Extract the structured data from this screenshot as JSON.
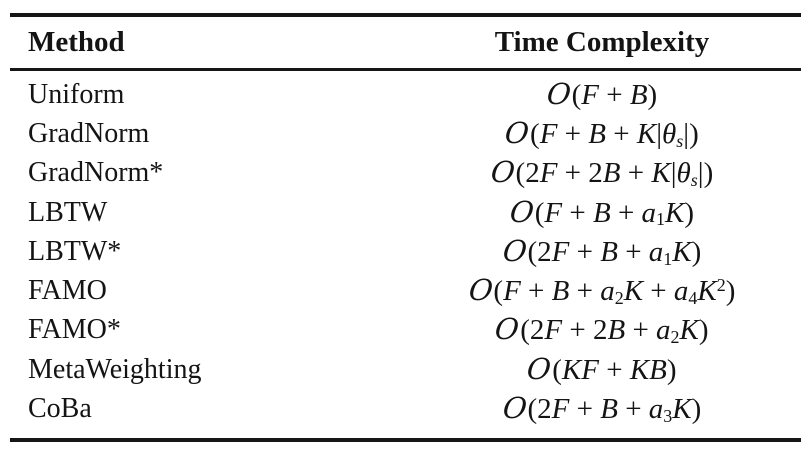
{
  "table": {
    "headers": {
      "method": "Method",
      "complexity": "Time Complexity"
    },
    "rule_color": "#161616",
    "rows": [
      {
        "method": "Uniform",
        "complexity_text": "O(F + B)",
        "formula": [
          {
            "c": "O",
            "k": "cal"
          },
          {
            "c": "(",
            "k": "up"
          },
          {
            "c": "F",
            "k": "it"
          },
          {
            "c": " + ",
            "k": "up"
          },
          {
            "c": "B",
            "k": "it"
          },
          {
            "c": ")",
            "k": "up"
          }
        ]
      },
      {
        "method": "GradNorm",
        "complexity_text": "O(F + B + K|θ_s|)",
        "formula": [
          {
            "c": "O",
            "k": "cal"
          },
          {
            "c": "(",
            "k": "up"
          },
          {
            "c": "F",
            "k": "it"
          },
          {
            "c": " + ",
            "k": "up"
          },
          {
            "c": "B",
            "k": "it"
          },
          {
            "c": " + ",
            "k": "up"
          },
          {
            "c": "K",
            "k": "it"
          },
          {
            "c": "|",
            "k": "up"
          },
          {
            "c": "θ",
            "k": "it"
          },
          {
            "c": "s",
            "k": "sbi"
          },
          {
            "c": "|)",
            "k": "up"
          }
        ]
      },
      {
        "method": "GradNorm*",
        "complexity_text": "O(2F + 2B + K|θ_s|)",
        "formula": [
          {
            "c": "O",
            "k": "cal"
          },
          {
            "c": "(2",
            "k": "up"
          },
          {
            "c": "F",
            "k": "it"
          },
          {
            "c": " + 2",
            "k": "up"
          },
          {
            "c": "B",
            "k": "it"
          },
          {
            "c": " + ",
            "k": "up"
          },
          {
            "c": "K",
            "k": "it"
          },
          {
            "c": "|",
            "k": "up"
          },
          {
            "c": "θ",
            "k": "it"
          },
          {
            "c": "s",
            "k": "sbi"
          },
          {
            "c": "|)",
            "k": "up"
          }
        ]
      },
      {
        "method": "LBTW",
        "complexity_text": "O(F + B + a_1K)",
        "formula": [
          {
            "c": "O",
            "k": "cal"
          },
          {
            "c": "(",
            "k": "up"
          },
          {
            "c": "F",
            "k": "it"
          },
          {
            "c": " + ",
            "k": "up"
          },
          {
            "c": "B",
            "k": "it"
          },
          {
            "c": " + ",
            "k": "up"
          },
          {
            "c": "a",
            "k": "it"
          },
          {
            "c": "1",
            "k": "sub"
          },
          {
            "c": "K",
            "k": "it"
          },
          {
            "c": ")",
            "k": "up"
          }
        ]
      },
      {
        "method": "LBTW*",
        "complexity_text": "O(2F + B + a_1K)",
        "formula": [
          {
            "c": "O",
            "k": "cal"
          },
          {
            "c": "(2",
            "k": "up"
          },
          {
            "c": "F",
            "k": "it"
          },
          {
            "c": " + ",
            "k": "up"
          },
          {
            "c": "B",
            "k": "it"
          },
          {
            "c": " + ",
            "k": "up"
          },
          {
            "c": "a",
            "k": "it"
          },
          {
            "c": "1",
            "k": "sub"
          },
          {
            "c": "K",
            "k": "it"
          },
          {
            "c": ")",
            "k": "up"
          }
        ]
      },
      {
        "method": "FAMO",
        "complexity_text": "O(F + B + a_2K + a_4K^2)",
        "formula": [
          {
            "c": "O",
            "k": "cal"
          },
          {
            "c": "(",
            "k": "up"
          },
          {
            "c": "F",
            "k": "it"
          },
          {
            "c": " + ",
            "k": "up"
          },
          {
            "c": "B",
            "k": "it"
          },
          {
            "c": " + ",
            "k": "up"
          },
          {
            "c": "a",
            "k": "it"
          },
          {
            "c": "2",
            "k": "sub"
          },
          {
            "c": "K",
            "k": "it"
          },
          {
            "c": " + ",
            "k": "up"
          },
          {
            "c": "a",
            "k": "it"
          },
          {
            "c": "4",
            "k": "sub"
          },
          {
            "c": "K",
            "k": "it"
          },
          {
            "c": "2",
            "k": "sup"
          },
          {
            "c": ")",
            "k": "up"
          }
        ]
      },
      {
        "method": "FAMO*",
        "complexity_text": "O(2F + 2B + a_2K)",
        "formula": [
          {
            "c": "O",
            "k": "cal"
          },
          {
            "c": "(2",
            "k": "up"
          },
          {
            "c": "F",
            "k": "it"
          },
          {
            "c": " + 2",
            "k": "up"
          },
          {
            "c": "B",
            "k": "it"
          },
          {
            "c": " + ",
            "k": "up"
          },
          {
            "c": "a",
            "k": "it"
          },
          {
            "c": "2",
            "k": "sub"
          },
          {
            "c": "K",
            "k": "it"
          },
          {
            "c": ")",
            "k": "up"
          }
        ]
      },
      {
        "method": "MetaWeighting",
        "complexity_text": "O(KF + KB)",
        "formula": [
          {
            "c": "O",
            "k": "cal"
          },
          {
            "c": "(",
            "k": "up"
          },
          {
            "c": "KF",
            "k": "it"
          },
          {
            "c": " + ",
            "k": "up"
          },
          {
            "c": "KB",
            "k": "it"
          },
          {
            "c": ")",
            "k": "up"
          }
        ]
      },
      {
        "method": "CoBa",
        "complexity_text": "O(2F + B + a_3K)",
        "formula": [
          {
            "c": "O",
            "k": "cal"
          },
          {
            "c": "(2",
            "k": "up"
          },
          {
            "c": "F",
            "k": "it"
          },
          {
            "c": " + ",
            "k": "up"
          },
          {
            "c": "B",
            "k": "it"
          },
          {
            "c": " + ",
            "k": "up"
          },
          {
            "c": "a",
            "k": "it"
          },
          {
            "c": "3",
            "k": "sub"
          },
          {
            "c": "K",
            "k": "it"
          },
          {
            "c": ")",
            "k": "up"
          }
        ]
      }
    ]
  }
}
